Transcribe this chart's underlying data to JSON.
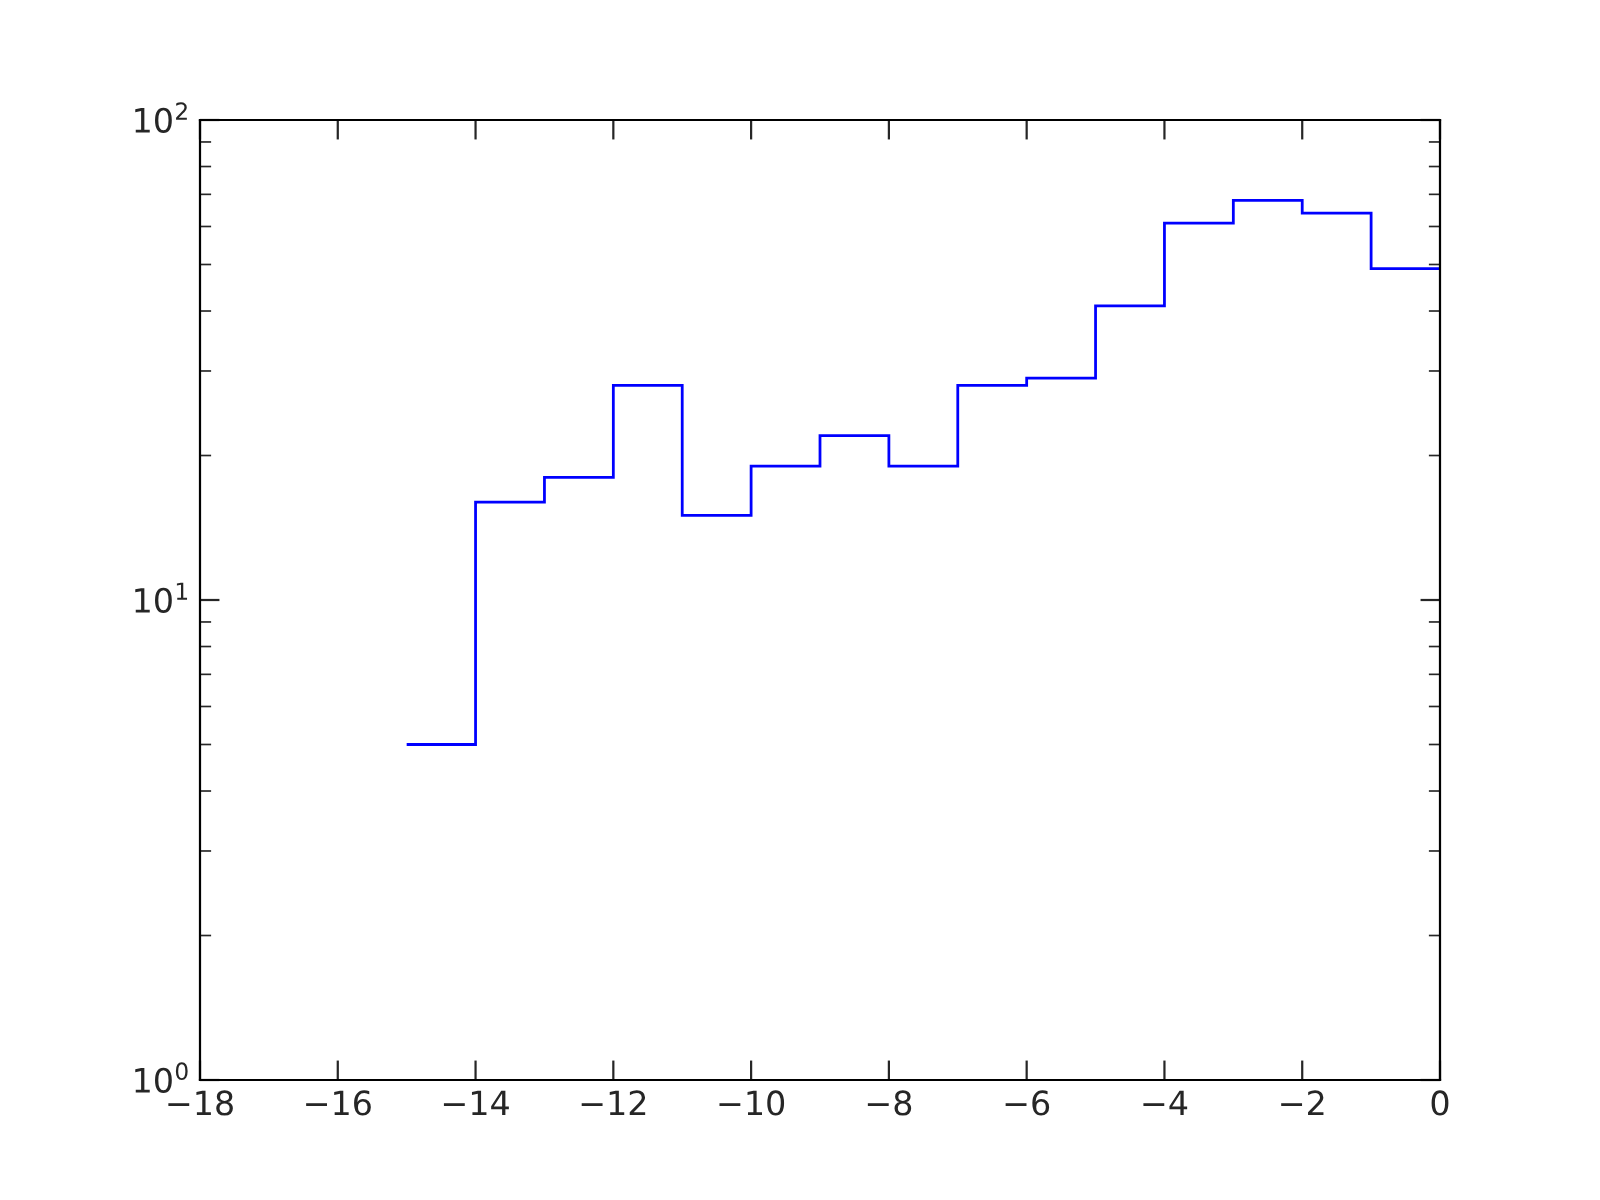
{
  "chart_data": {
    "type": "histogram",
    "bins": [
      -15,
      -14,
      -13,
      -12,
      -11,
      -10,
      -9,
      -8,
      -7,
      -6,
      -5,
      -4,
      -3,
      -2,
      -1,
      0
    ],
    "values": [
      5,
      16,
      18,
      28,
      15,
      19,
      22,
      19,
      28,
      29,
      41,
      61,
      68,
      64,
      49
    ],
    "color": "#0000ff",
    "log": "y",
    "xlim": [
      -18,
      0
    ],
    "xticks": [
      -18,
      -16,
      -14,
      -12,
      -10,
      -8,
      -6,
      -4,
      -2,
      0
    ],
    "ylim": [
      1,
      100
    ],
    "yticks": [
      {
        "value": 1,
        "label": "10$^{0}$"
      },
      {
        "value": 10,
        "label": "10$^{1}$"
      },
      {
        "value": 100,
        "label": "10$^{2}$"
      }
    ],
    "grid": false,
    "legend": false
  }
}
